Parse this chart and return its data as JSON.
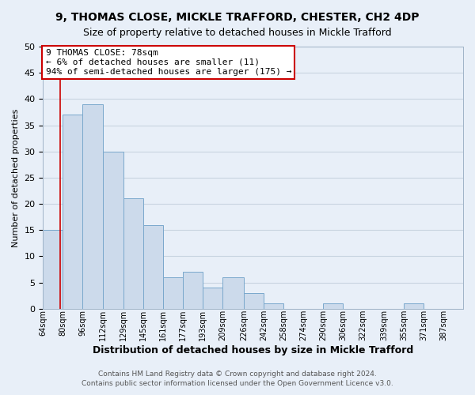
{
  "title1": "9, THOMAS CLOSE, MICKLE TRAFFORD, CHESTER, CH2 4DP",
  "title2": "Size of property relative to detached houses in Mickle Trafford",
  "xlabel": "Distribution of detached houses by size in Mickle Trafford",
  "ylabel": "Number of detached properties",
  "footer1": "Contains HM Land Registry data © Crown copyright and database right 2024.",
  "footer2": "Contains public sector information licensed under the Open Government Licence v3.0.",
  "bin_labels": [
    "64sqm",
    "80sqm",
    "96sqm",
    "112sqm",
    "129sqm",
    "145sqm",
    "161sqm",
    "177sqm",
    "193sqm",
    "209sqm",
    "226sqm",
    "242sqm",
    "258sqm",
    "274sqm",
    "290sqm",
    "306sqm",
    "322sqm",
    "339sqm",
    "355sqm",
    "371sqm",
    "387sqm"
  ],
  "bin_edges": [
    64,
    80,
    96,
    112,
    129,
    145,
    161,
    177,
    193,
    209,
    226,
    242,
    258,
    274,
    290,
    306,
    322,
    339,
    355,
    371,
    387
  ],
  "bar_heights": [
    15,
    37,
    39,
    30,
    21,
    16,
    6,
    7,
    4,
    6,
    3,
    1,
    0,
    0,
    1,
    0,
    0,
    0,
    1,
    0,
    0
  ],
  "bar_color": "#ccdaeb",
  "bar_edge_color": "#7aa8cc",
  "property_line_x": 78,
  "property_line_color": "#cc0000",
  "annotation_line1": "9 THOMAS CLOSE: 78sqm",
  "annotation_line2": "← 6% of detached houses are smaller (11)",
  "annotation_line3": "94% of semi-detached houses are larger (175) →",
  "annotation_box_color": "#ffffff",
  "annotation_box_edge_color": "#cc0000",
  "ylim": [
    0,
    50
  ],
  "yticks": [
    0,
    5,
    10,
    15,
    20,
    25,
    30,
    35,
    40,
    45,
    50
  ],
  "grid_color": "#c8d4e0",
  "background_color": "#e8eff8",
  "title1_fontsize": 10,
  "title2_fontsize": 9,
  "xlabel_fontsize": 9,
  "ylabel_fontsize": 8,
  "tick_fontsize": 7,
  "footer_fontsize": 6.5,
  "annotation_fontsize": 8
}
